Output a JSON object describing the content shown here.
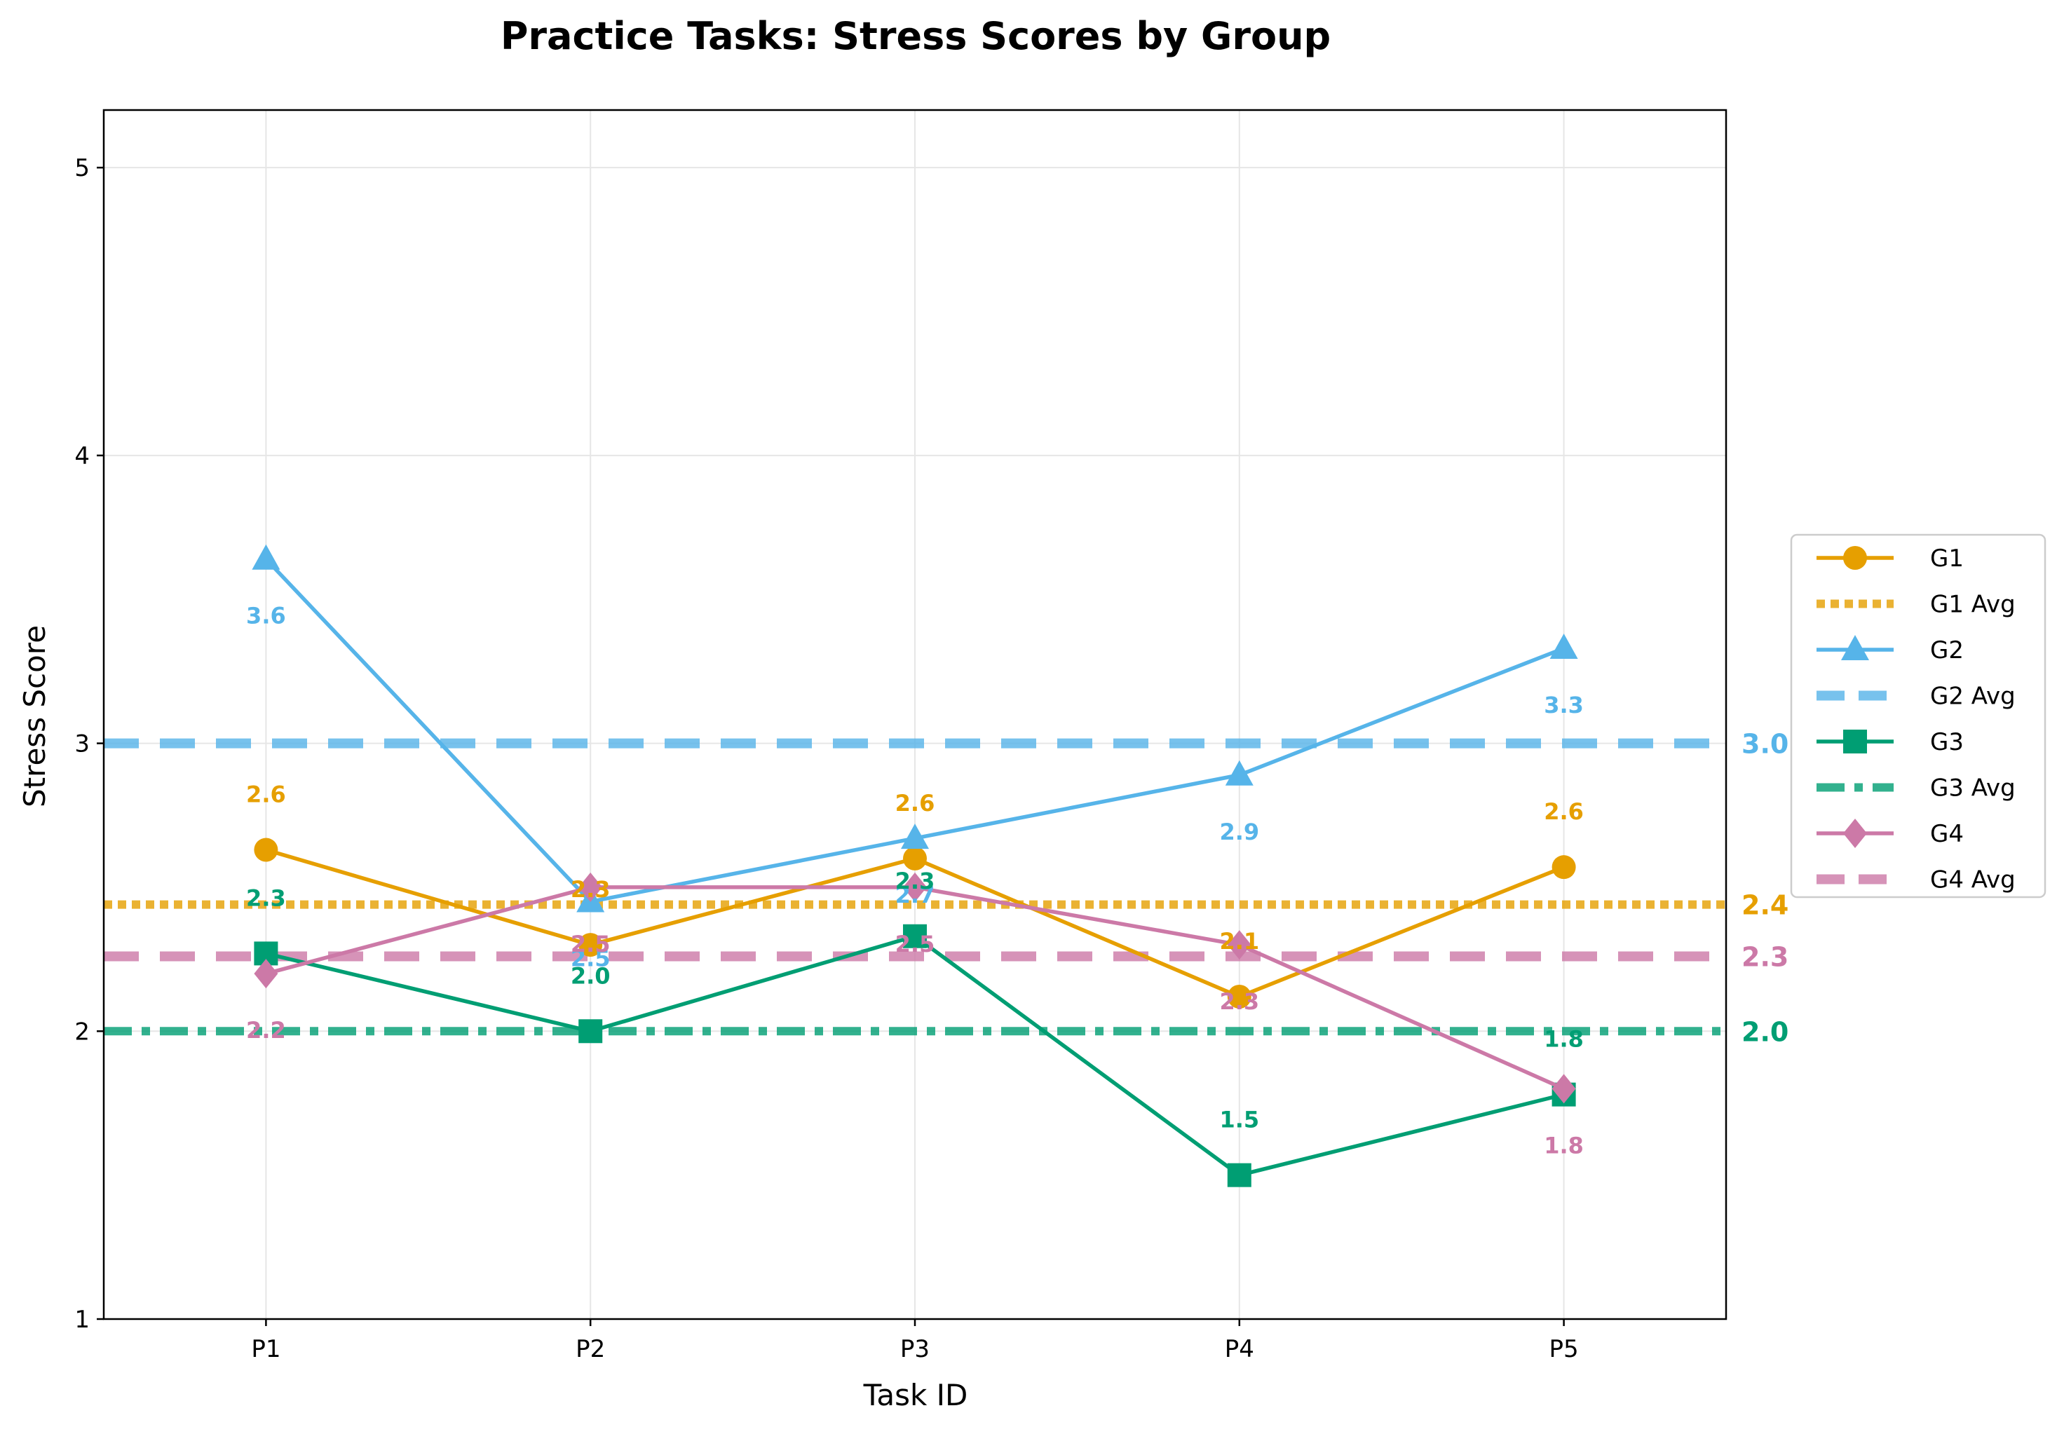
{
  "chart_data": {
    "type": "line",
    "title": "Practice Tasks: Stress Scores by Group",
    "xlabel": "Task ID",
    "ylabel": "Stress Score",
    "categories": [
      "P1",
      "P2",
      "P3",
      "P4",
      "P5"
    ],
    "ylim": [
      1,
      5.2
    ],
    "yticks": [
      "1",
      "2",
      "3",
      "4",
      "5"
    ],
    "grid": true,
    "legend_placement": "right",
    "series": [
      {
        "name": "G1",
        "color": "#E69F00",
        "marker": "circle",
        "values": [
          2.63,
          2.3,
          2.6,
          2.12,
          2.57
        ],
        "labels": [
          "2.6",
          "2.3",
          "2.6",
          "2.1",
          "2.6"
        ]
      },
      {
        "name": "G2",
        "color": "#56B4E9",
        "marker": "triangle",
        "values": [
          3.64,
          2.45,
          2.67,
          2.89,
          3.33
        ],
        "labels": [
          "3.6",
          "2.5",
          "2.7",
          "2.9",
          "3.3"
        ]
      },
      {
        "name": "G3",
        "color": "#009E73",
        "marker": "square",
        "values": [
          2.27,
          2.0,
          2.33,
          1.5,
          1.78
        ],
        "labels": [
          "2.3",
          "2.0",
          "2.3",
          "1.5",
          "1.8"
        ]
      },
      {
        "name": "G4",
        "color": "#CC79A7",
        "marker": "diamond",
        "values": [
          2.2,
          2.5,
          2.5,
          2.3,
          1.8
        ],
        "labels": [
          "2.2",
          "2.5",
          "2.5",
          "2.3",
          "1.8"
        ]
      }
    ],
    "averages": [
      {
        "name": "G1 Avg",
        "value": 2.44,
        "label": "2.4",
        "color": "#E69F00",
        "style": "dotted"
      },
      {
        "name": "G2 Avg",
        "value": 3.0,
        "label": "3.0",
        "color": "#56B4E9",
        "style": "dashed"
      },
      {
        "name": "G3 Avg",
        "value": 2.0,
        "label": "2.0",
        "color": "#009E73",
        "style": "dashdot"
      },
      {
        "name": "G4 Avg",
        "value": 2.26,
        "label": "2.3",
        "color": "#CC79A7",
        "style": "dashed"
      }
    ]
  }
}
